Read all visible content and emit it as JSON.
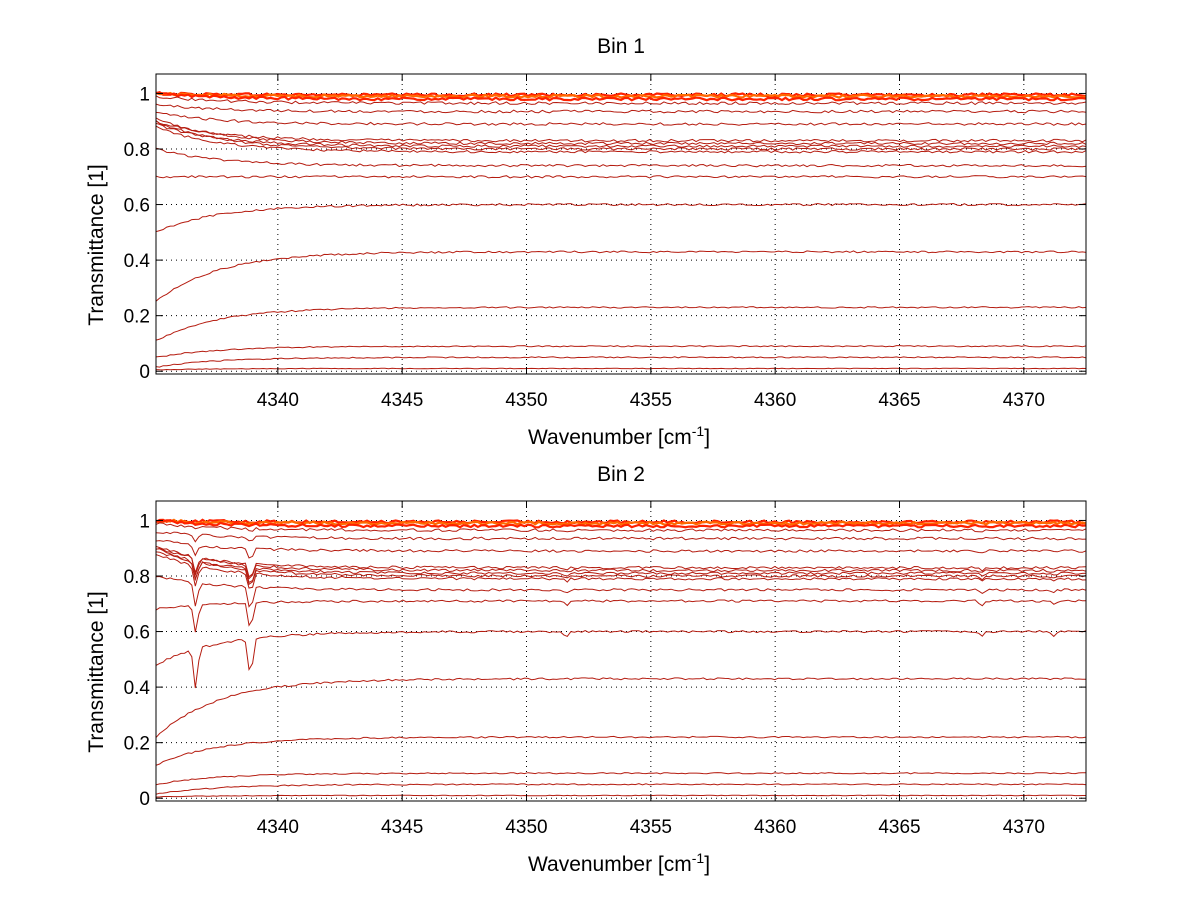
{
  "figure": {
    "background": "#ffffff",
    "line_color": "#b51c10",
    "highlight_colors": [
      "#ff2200",
      "#ff6a00",
      "#e6c000",
      "#2f5fd0"
    ],
    "grid_color": "#000000"
  },
  "chart_data": [
    {
      "type": "line",
      "title": "Bin 1",
      "xlabel_main": "Wavenumber [cm",
      "xlabel_sup": "-1",
      "xlabel_end": "]",
      "ylabel": "Transmittance [1]",
      "xlim": [
        4335.1,
        4372.5
      ],
      "ylim": [
        -0.01,
        1.07
      ],
      "xticks": [
        4340,
        4345,
        4350,
        4355,
        4360,
        4365,
        4370
      ],
      "xtick_labels": [
        "4340",
        "4345",
        "4350",
        "4355",
        "4360",
        "4365",
        "4370"
      ],
      "yticks": [
        0,
        0.2,
        0.4,
        0.6,
        0.8,
        1
      ],
      "ytick_labels": [
        "0",
        "0.2",
        "0.4",
        "0.6",
        "0.8",
        "1"
      ],
      "grid": true,
      "series_start": [
        1.0,
        1.0,
        1.0,
        0.99,
        0.96,
        0.93,
        0.9,
        0.91,
        0.89,
        0.9,
        0.88,
        0.8,
        0.7,
        0.5,
        0.25,
        0.11,
        0.05,
        0.015,
        0.005
      ],
      "series_end": [
        0.995,
        0.99,
        0.98,
        0.965,
        0.935,
        0.89,
        0.83,
        0.82,
        0.81,
        0.8,
        0.79,
        0.74,
        0.7,
        0.6,
        0.43,
        0.23,
        0.09,
        0.05,
        0.01
      ],
      "series_decay_cm": 2.5
    },
    {
      "type": "line",
      "title": "Bin 2",
      "xlabel_main": "Wavenumber [cm",
      "xlabel_sup": "-1",
      "xlabel_end": "]",
      "ylabel": "Transmittance [1]",
      "xlim": [
        4335.1,
        4372.5
      ],
      "ylim": [
        -0.01,
        1.07
      ],
      "xticks": [
        4340,
        4345,
        4350,
        4355,
        4360,
        4365,
        4370
      ],
      "xtick_labels": [
        "4340",
        "4345",
        "4350",
        "4355",
        "4360",
        "4365",
        "4370"
      ],
      "yticks": [
        0,
        0.2,
        0.4,
        0.6,
        0.8,
        1
      ],
      "ytick_labels": [
        "0",
        "0.2",
        "0.4",
        "0.6",
        "0.8",
        "1"
      ],
      "grid": true,
      "series_start": [
        1.0,
        1.0,
        1.0,
        0.99,
        0.96,
        0.93,
        0.9,
        0.91,
        0.89,
        0.9,
        0.88,
        0.8,
        0.68,
        0.48,
        0.22,
        0.12,
        0.05,
        0.015,
        0.005
      ],
      "series_end": [
        0.995,
        0.99,
        0.98,
        0.965,
        0.935,
        0.89,
        0.83,
        0.82,
        0.81,
        0.8,
        0.79,
        0.75,
        0.71,
        0.6,
        0.43,
        0.22,
        0.09,
        0.05,
        0.01
      ],
      "series_decay_cm": 2.5
    }
  ]
}
